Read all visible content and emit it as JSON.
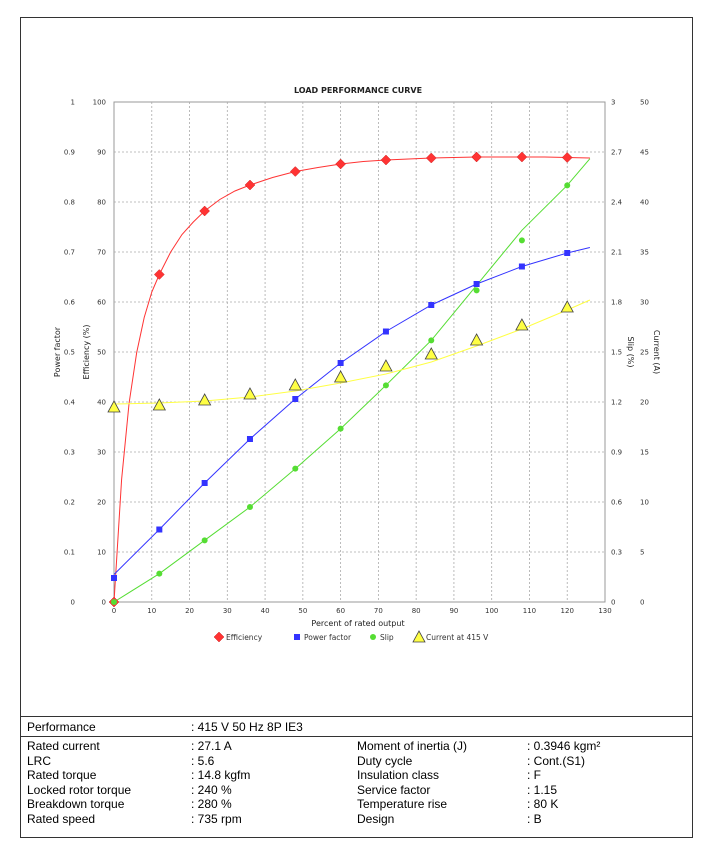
{
  "chart_data": {
    "type": "line",
    "title": "LOAD PERFORMANCE CURVE",
    "xlabel": "Percent of rated output",
    "xlim": [
      0,
      130
    ],
    "xticks": [
      "0",
      "10",
      "20",
      "30",
      "40",
      "50",
      "60",
      "70",
      "80",
      "90",
      "100",
      "110",
      "120",
      "130"
    ],
    "grid": true,
    "legend_position": "bottom",
    "axes": {
      "power_factor": {
        "label": "Power factor",
        "range": [
          0,
          1
        ],
        "ticks": [
          "0",
          "0.1",
          "0.2",
          "0.3",
          "0.4",
          "0.5",
          "0.6",
          "0.7",
          "0.8",
          "0.9",
          "1"
        ]
      },
      "efficiency": {
        "label": "Efficiency (%)",
        "range": [
          0,
          100
        ],
        "ticks": [
          "0",
          "10",
          "20",
          "30",
          "40",
          "50",
          "60",
          "70",
          "80",
          "90",
          "100"
        ]
      },
      "slip": {
        "label": "Slip (%)",
        "range": [
          0,
          3
        ],
        "ticks": [
          "0",
          "0.3",
          "0.6",
          "0.9",
          "1.2",
          "1.5",
          "1.8",
          "2.1",
          "2.4",
          "2.7",
          "3"
        ]
      },
      "current": {
        "label": "Current (A)",
        "range": [
          0,
          50
        ],
        "ticks": [
          "0",
          "5",
          "10",
          "15",
          "20",
          "25",
          "30",
          "35",
          "40",
          "45",
          "50"
        ]
      }
    },
    "series": [
      {
        "name": "Efficiency",
        "axis": "efficiency",
        "color": "#ff3333",
        "marker": "diamond",
        "markers_x": [
          0,
          12,
          24,
          36,
          48,
          60,
          72,
          84,
          96,
          108,
          120
        ],
        "markers_y": [
          0,
          65.5,
          78.2,
          83.4,
          86.1,
          87.6,
          88.4,
          88.8,
          89.0,
          89.0,
          88.9
        ],
        "curve_x": [
          0,
          2,
          4,
          6,
          8,
          10,
          12,
          15,
          18,
          21,
          24,
          28,
          32,
          36,
          42,
          48,
          54,
          60,
          66,
          72,
          78,
          84,
          90,
          96,
          102,
          108,
          114,
          120,
          126
        ],
        "curve_y": [
          0,
          24.5,
          39.8,
          49.9,
          56.9,
          62,
          65.5,
          70,
          73.5,
          76,
          78.2,
          80.5,
          82.2,
          83.4,
          84.9,
          86.1,
          86.9,
          87.6,
          88.1,
          88.4,
          88.6,
          88.8,
          88.9,
          89.0,
          89.0,
          89.0,
          89.0,
          88.9,
          88.8
        ]
      },
      {
        "name": "Power factor",
        "axis": "power_factor",
        "color": "#3333ff",
        "marker": "square",
        "markers_x": [
          0,
          12,
          24,
          36,
          48,
          60,
          72,
          84,
          96,
          108,
          120
        ],
        "markers_y": [
          0.048,
          0.145,
          0.238,
          0.326,
          0.406,
          0.478,
          0.541,
          0.594,
          0.636,
          0.671,
          0.698
        ],
        "curve_x": [
          0,
          12,
          24,
          36,
          48,
          60,
          72,
          84,
          96,
          108,
          120,
          126
        ],
        "curve_y": [
          0.055,
          0.145,
          0.238,
          0.326,
          0.406,
          0.478,
          0.541,
          0.594,
          0.636,
          0.671,
          0.698,
          0.709
        ]
      },
      {
        "name": "Slip",
        "axis": "slip",
        "color": "#55dd33",
        "marker": "circle",
        "markers_x": [
          0,
          12,
          24,
          36,
          48,
          60,
          72,
          84,
          96,
          108,
          120
        ],
        "markers_y": [
          0,
          0.17,
          0.37,
          0.57,
          0.8,
          1.04,
          1.3,
          1.57,
          1.87,
          2.17,
          2.5
        ],
        "curve_x": [
          0,
          12,
          24,
          36,
          48,
          60,
          72,
          84,
          96,
          108,
          120,
          126
        ],
        "curve_y": [
          0,
          0.17,
          0.37,
          0.57,
          0.8,
          1.04,
          1.3,
          1.57,
          1.9,
          2.23,
          2.5,
          2.66
        ]
      },
      {
        "name": "Current at 415 V",
        "axis": "current",
        "color": "#ffff44",
        "marker": "triangle",
        "markers_x": [
          0,
          12,
          24,
          36,
          48,
          60,
          72,
          84,
          96,
          108,
          120
        ],
        "markers_y": [
          19.5,
          19.7,
          20.2,
          20.8,
          21.7,
          22.5,
          23.6,
          24.8,
          26.2,
          27.7,
          29.5
        ],
        "curve_x": [
          0,
          12,
          24,
          36,
          48,
          60,
          72,
          84,
          96,
          108,
          120,
          126
        ],
        "curve_y": [
          19.8,
          19.9,
          20.1,
          20.5,
          21.1,
          21.9,
          22.8,
          24.0,
          25.6,
          27.3,
          29.2,
          30.2
        ]
      }
    ]
  },
  "specs": {
    "performance_label": "Performance",
    "performance_value": ": 415 V 50 Hz 8P IE3",
    "left": [
      {
        "label": "Rated current",
        "value": ": 27.1 A"
      },
      {
        "label": "LRC",
        "value": ": 5.6"
      },
      {
        "label": "Rated torque",
        "value": ": 14.8 kgfm"
      },
      {
        "label": "Locked rotor torque",
        "value": ": 240 %"
      },
      {
        "label": "Breakdown torque",
        "value": ": 280 %"
      },
      {
        "label": "Rated speed",
        "value": ": 735 rpm"
      }
    ],
    "right": [
      {
        "label": "Moment of inertia (J)",
        "value": ": 0.3946 kgm²"
      },
      {
        "label": "Duty cycle",
        "value": ": Cont.(S1)"
      },
      {
        "label": "Insulation class",
        "value": ": F"
      },
      {
        "label": "Service factor",
        "value": ": 1.15"
      },
      {
        "label": "Temperature rise",
        "value": ": 80 K"
      },
      {
        "label": "Design",
        "value": ": B"
      }
    ]
  }
}
